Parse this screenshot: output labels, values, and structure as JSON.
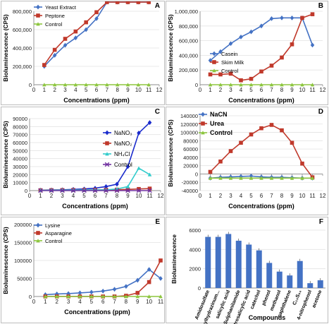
{
  "figure": {
    "panels": [
      "A",
      "B",
      "C",
      "D",
      "E",
      "F"
    ]
  },
  "chart_data": [
    {
      "panel": "A",
      "type": "line",
      "ylabel": "Bioluminescence (CPS)",
      "xlabel": "Concentrations (ppm)",
      "x": [
        1,
        2,
        3,
        4,
        5,
        6,
        7,
        8,
        9,
        10,
        11
      ],
      "xlim": [
        0,
        12
      ],
      "ylim": [
        0,
        800000
      ],
      "yticks": [
        0,
        200000,
        400000,
        600000,
        800000
      ],
      "ytick_labels": [
        "0",
        "200,000",
        "400,000",
        "600,000",
        "800,000"
      ],
      "xtick_labels": [
        "0",
        "1",
        "2",
        "3",
        "4",
        "5",
        "6",
        "7",
        "8",
        "9",
        "10",
        "11",
        "12"
      ],
      "legend_position": "top-left",
      "series": [
        {
          "name": "Yeast Extract",
          "color": "#4472c4",
          "marker": "diamond",
          "values": [
            200000,
            320000,
            430000,
            510000,
            600000,
            720000,
            900000,
            900000,
            900000,
            900000,
            900000
          ]
        },
        {
          "name": "Peptone",
          "color": "#c0392b",
          "marker": "square",
          "values": [
            215000,
            380000,
            500000,
            580000,
            680000,
            790000,
            900000,
            900000,
            900000,
            900000,
            900000
          ]
        },
        {
          "name": "Control",
          "color": "#8dc63f",
          "marker": "triangle",
          "values": [
            0,
            0,
            0,
            0,
            0,
            0,
            0,
            0,
            0,
            0,
            0
          ]
        }
      ]
    },
    {
      "panel": "B",
      "type": "line",
      "ylabel": "Bioluminescence (CPS)",
      "xlabel": "Concentrations (ppm)",
      "x": [
        1,
        2,
        3,
        4,
        5,
        6,
        7,
        8,
        9,
        10,
        11
      ],
      "xlim": [
        0,
        12
      ],
      "ylim": [
        0,
        1000000
      ],
      "yticks": [
        0,
        200000,
        400000,
        600000,
        800000,
        1000000
      ],
      "ytick_labels": [
        "0",
        "200,000",
        "400,000",
        "600,000",
        "800,000",
        "1,000,000"
      ],
      "xtick_labels": [
        "0",
        "1",
        "2",
        "3",
        "4",
        "5",
        "6",
        "7",
        "8",
        "9",
        "10",
        "11",
        "12"
      ],
      "legend_position": "center-left",
      "series": [
        {
          "name": "Casein",
          "color": "#4472c4",
          "marker": "diamond",
          "values": [
            330000,
            450000,
            560000,
            650000,
            720000,
            800000,
            900000,
            910000,
            910000,
            910000,
            540000
          ]
        },
        {
          "name": "Skim Milk",
          "color": "#c0392b",
          "marker": "square",
          "values": [
            140000,
            140000,
            150000,
            60000,
            80000,
            180000,
            260000,
            370000,
            550000,
            910000,
            960000
          ]
        },
        {
          "name": "Control",
          "color": "#8dc63f",
          "marker": "triangle",
          "values": [
            0,
            0,
            0,
            0,
            0,
            0,
            0,
            0,
            0,
            0,
            0
          ]
        }
      ]
    },
    {
      "panel": "C",
      "type": "line",
      "ylabel": "Bioluminescence (CPS)",
      "xlabel": "Concentrations (ppm)",
      "x": [
        1,
        2,
        3,
        4,
        5,
        6,
        7,
        8,
        9,
        10,
        11
      ],
      "xlim": [
        0,
        12
      ],
      "ylim": [
        0,
        90000
      ],
      "yticks": [
        0,
        10000,
        20000,
        30000,
        40000,
        50000,
        60000,
        70000,
        80000,
        90000
      ],
      "ytick_labels": [
        "0",
        "10000",
        "20000",
        "30000",
        "40000",
        "50000",
        "60000",
        "70000",
        "80000",
        "90000"
      ],
      "xtick_labels": [
        "0",
        "1",
        "2",
        "3",
        "4",
        "5",
        "6",
        "7",
        "8",
        "9",
        "10",
        "11",
        "12"
      ],
      "legend_position": "center-right",
      "series": [
        {
          "name": "NaNO₃",
          "color": "#1a2bcc",
          "marker": "diamond",
          "values": [
            500,
            800,
            1000,
            1500,
            2000,
            3000,
            5000,
            8000,
            30000,
            72000,
            85000
          ]
        },
        {
          "name": "NaNO₂",
          "color": "#c0392b",
          "marker": "square",
          "values": [
            400,
            500,
            600,
            700,
            800,
            900,
            1000,
            1200,
            1500,
            2000,
            2500
          ]
        },
        {
          "name": "NH₄Cl",
          "color": "#33cccc",
          "marker": "triangle",
          "values": [
            300,
            400,
            500,
            600,
            700,
            800,
            1000,
            2000,
            5000,
            28000,
            20000
          ]
        },
        {
          "name": "Control",
          "color": "#7030a0",
          "marker": "x",
          "values": [
            0,
            0,
            0,
            0,
            0,
            0,
            0,
            0,
            0,
            0,
            0
          ]
        }
      ]
    },
    {
      "panel": "D",
      "type": "line",
      "ylabel": "Bioluminescence (CPS)",
      "xlabel": "Concentrations (ppm)",
      "x": [
        1,
        2,
        3,
        4,
        5,
        6,
        7,
        8,
        9,
        10,
        11
      ],
      "xlim": [
        0,
        12
      ],
      "ylim": [
        -40000,
        140000
      ],
      "yticks": [
        -40000,
        -20000,
        0,
        20000,
        40000,
        60000,
        80000,
        100000,
        120000,
        140000
      ],
      "ytick_labels": [
        "-40000",
        "-20000",
        "0",
        "20000",
        "40000",
        "60000",
        "80000",
        "100000",
        "120000",
        "140000"
      ],
      "xtick_labels": [
        "0",
        "1",
        "2",
        "3",
        "4",
        "5",
        "6",
        "7",
        "8",
        "9",
        "10",
        "11",
        "12"
      ],
      "legend_position": "top-left",
      "series": [
        {
          "name": "NaCN",
          "color": "#4472c4",
          "marker": "diamond",
          "values": [
            -10000,
            -8000,
            -7000,
            -6000,
            -5000,
            -7000,
            -8000,
            -8000,
            -9000,
            -10000,
            -10000
          ]
        },
        {
          "name": "Urea",
          "color": "#c0392b",
          "marker": "square",
          "values": [
            5000,
            30000,
            55000,
            75000,
            95000,
            110000,
            118000,
            105000,
            75000,
            25000,
            -8000
          ]
        },
        {
          "name": "Control",
          "color": "#8dc63f",
          "marker": "triangle",
          "values": [
            -10000,
            -10000,
            -10000,
            -10000,
            -10000,
            -10000,
            -10000,
            -10000,
            -10000,
            -10000,
            -10000
          ]
        }
      ]
    },
    {
      "panel": "E",
      "type": "line",
      "ylabel": "Bioluminescence (CPS)",
      "xlabel": "Concentrations (ppm)",
      "x": [
        1,
        2,
        3,
        4,
        5,
        6,
        7,
        8,
        9,
        10,
        11
      ],
      "xlim": [
        0,
        11
      ],
      "ylim": [
        0,
        200000
      ],
      "yticks": [
        0,
        50000,
        100000,
        150000,
        200000
      ],
      "ytick_labels": [
        "0",
        "50000",
        "100000",
        "150000",
        "200000"
      ],
      "xtick_labels": [
        "0",
        "1",
        "2",
        "3",
        "4",
        "5",
        "6",
        "7",
        "8",
        "9",
        "10",
        "11"
      ],
      "legend_position": "top-left",
      "series": [
        {
          "name": "Lysine",
          "color": "#4472c4",
          "marker": "diamond",
          "values": [
            5000,
            7000,
            8000,
            10000,
            12000,
            15000,
            20000,
            28000,
            45000,
            75000,
            50000
          ]
        },
        {
          "name": "Asparagine",
          "color": "#c0392b",
          "marker": "square",
          "values": [
            0,
            0,
            0,
            0,
            0,
            0,
            0,
            2000,
            10000,
            40000,
            100000
          ]
        },
        {
          "name": "Control",
          "color": "#8dc63f",
          "marker": "triangle",
          "values": [
            0,
            0,
            0,
            0,
            0,
            0,
            0,
            0,
            0,
            0,
            0
          ]
        }
      ]
    },
    {
      "panel": "F",
      "type": "bar",
      "ylabel": "Bioluminescence",
      "xlabel": "Compounds",
      "ylim": [
        0,
        6000
      ],
      "yticks": [
        0,
        2000,
        4000,
        6000
      ],
      "ytick_labels": [
        "0",
        "2000",
        "4000",
        "6000"
      ],
      "color": "#4472c4",
      "categories": [
        "Amidosulfate",
        "phenylhydrazinum...",
        "salicylic acid",
        "Sulphanilamide",
        "dinitrosalicylic acid",
        "catechol",
        "phenol",
        "methanol",
        "naphthalene",
        "C₁₀S₀₄",
        "4-nitrophenol",
        "acetone"
      ],
      "values": [
        5300,
        5300,
        5600,
        4900,
        4500,
        3900,
        2600,
        1700,
        1300,
        2800,
        500,
        800
      ]
    }
  ]
}
